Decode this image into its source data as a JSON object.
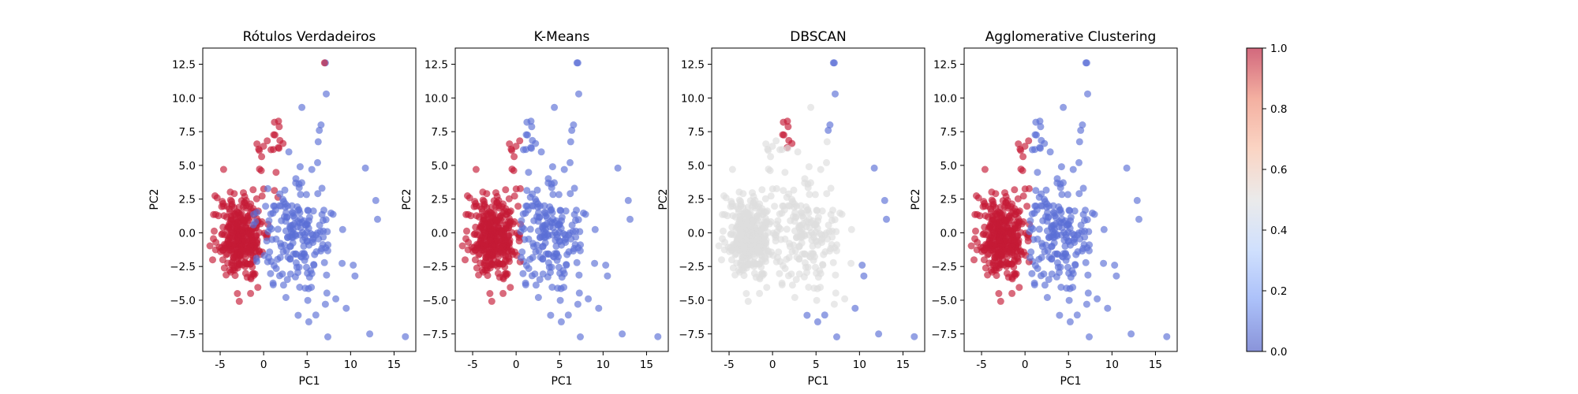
{
  "colors": {
    "cluster_0": "#5a6fd6",
    "cluster_1": "#c41a35",
    "noise": "#dddddd",
    "axis": "#000000"
  },
  "colorbar": {
    "ticks": [
      "0.0",
      "0.2",
      "0.4",
      "0.6",
      "0.8",
      "1.0"
    ],
    "ylim": [
      0,
      1
    ],
    "stops": [
      "#3b4cc0",
      "#7396f5",
      "#b0cbfc",
      "#dddddd",
      "#f7b89c",
      "#ec7b62",
      "#b40426"
    ],
    "alpha": 0.6
  },
  "chart_data": [
    {
      "type": "scatter",
      "title": "Rótulos Verdadeiros",
      "xlabel": "PC1",
      "ylabel": "PC2",
      "xlim": [
        -7,
        17.5
      ],
      "ylim": [
        -8.8,
        13.7
      ],
      "xticks": [
        "-5",
        "0",
        "5",
        "10",
        "15"
      ],
      "yticks": [
        "−7.5",
        "−5.0",
        "−2.5",
        "0.0",
        "2.5",
        "5.0",
        "7.5",
        "10.0",
        "12.5"
      ],
      "legend": "none",
      "point_alpha": 0.65
    },
    {
      "type": "scatter",
      "title": "K-Means",
      "xlabel": "PC1",
      "ylabel": "PC2",
      "xlim": [
        -7,
        17.5
      ],
      "ylim": [
        -8.8,
        13.7
      ],
      "xticks": [
        "-5",
        "0",
        "5",
        "10",
        "15"
      ],
      "yticks": [
        "−7.5",
        "−5.0",
        "−2.5",
        "0.0",
        "2.5",
        "5.0",
        "7.5",
        "10.0",
        "12.5"
      ],
      "legend": "none",
      "point_alpha": 0.65
    },
    {
      "type": "scatter",
      "title": "DBSCAN",
      "xlabel": "PC1",
      "ylabel": "PC2",
      "xlim": [
        -7,
        17.5
      ],
      "ylim": [
        -8.8,
        13.7
      ],
      "xticks": [
        "-5",
        "0",
        "5",
        "10",
        "15"
      ],
      "yticks": [
        "−7.5",
        "−5.0",
        "−2.5",
        "0.0",
        "2.5",
        "5.0",
        "7.5",
        "10.0",
        "12.5"
      ],
      "legend": "none",
      "point_alpha": 0.65
    },
    {
      "type": "scatter",
      "title": "Agglomerative Clustering",
      "xlabel": "PC1",
      "ylabel": "PC2",
      "xlim": [
        -7,
        17.5
      ],
      "ylim": [
        -8.8,
        13.7
      ],
      "xticks": [
        "-5",
        "0",
        "5",
        "10",
        "15"
      ],
      "yticks": [
        "−7.5",
        "−5.0",
        "−2.5",
        "0.0",
        "2.5",
        "5.0",
        "7.5",
        "10.0",
        "12.5"
      ],
      "legend": "none",
      "point_alpha": 0.65
    }
  ]
}
